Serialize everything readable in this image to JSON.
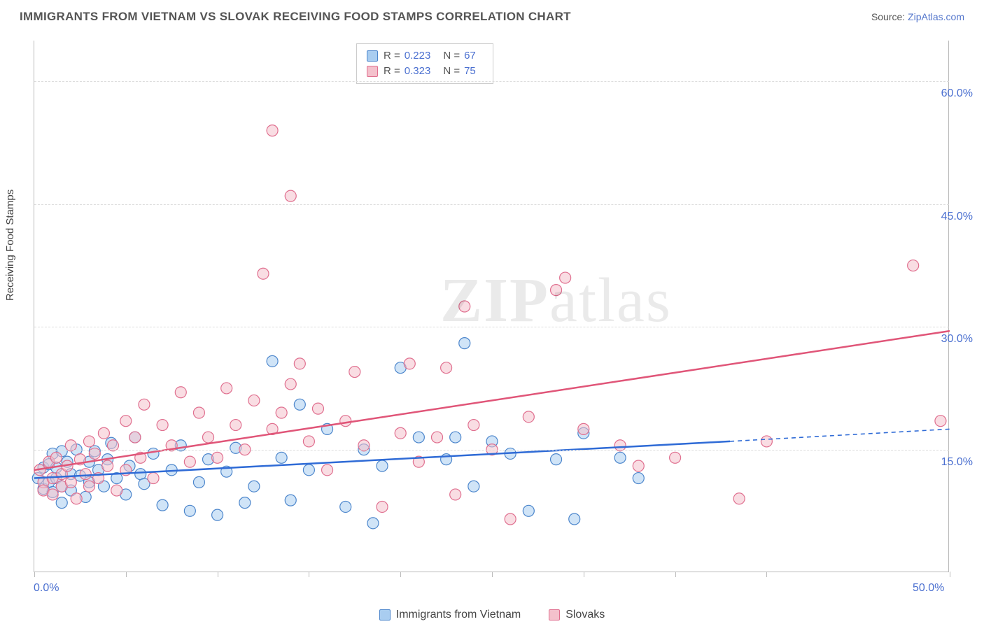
{
  "header": {
    "title": "IMMIGRANTS FROM VIETNAM VS SLOVAK RECEIVING FOOD STAMPS CORRELATION CHART",
    "source_label": "Source: ",
    "source_link": "ZipAtlas.com"
  },
  "chart": {
    "type": "scatter",
    "ylabel": "Receiving Food Stamps",
    "xlim": [
      0,
      50
    ],
    "ylim": [
      0,
      65
    ],
    "y_ticks": [
      15,
      30,
      45,
      60
    ],
    "y_tick_labels": [
      "15.0%",
      "30.0%",
      "45.0%",
      "60.0%"
    ],
    "x_ticks": [
      0,
      5,
      10,
      15,
      20,
      25,
      30,
      35,
      40,
      50
    ],
    "x_tick_labels_shown": {
      "0": "0.0%",
      "50": "50.0%"
    },
    "background_color": "#ffffff",
    "grid_color": "#dddddd",
    "axis_color": "#bbbbbb",
    "marker_radius": 8,
    "marker_opacity": 0.55,
    "series": [
      {
        "name": "Immigrants from Vietnam",
        "fill": "#a9cdf0",
        "stroke": "#4c86cc",
        "line_color": "#2f6bd6",
        "r": 0.223,
        "n": 67,
        "trend": {
          "x1": 0,
          "y1": 11.5,
          "x2": 38,
          "y2": 16.0,
          "dash_x2": 50,
          "dash_y2": 17.5
        },
        "points": [
          [
            0.2,
            11.5
          ],
          [
            0.5,
            12.8
          ],
          [
            0.5,
            10.2
          ],
          [
            0.8,
            11.0
          ],
          [
            0.8,
            13.2
          ],
          [
            1.0,
            9.8
          ],
          [
            1.0,
            14.5
          ],
          [
            1.2,
            11.5
          ],
          [
            1.2,
            12.8
          ],
          [
            1.5,
            10.5
          ],
          [
            1.5,
            14.8
          ],
          [
            1.5,
            8.5
          ],
          [
            1.8,
            13.5
          ],
          [
            2.0,
            12.0
          ],
          [
            2.0,
            10.0
          ],
          [
            2.3,
            15.0
          ],
          [
            2.5,
            11.8
          ],
          [
            2.8,
            9.2
          ],
          [
            3.0,
            13.5
          ],
          [
            3.0,
            11.0
          ],
          [
            3.3,
            14.8
          ],
          [
            3.5,
            12.5
          ],
          [
            3.8,
            10.5
          ],
          [
            4.0,
            13.8
          ],
          [
            4.2,
            15.8
          ],
          [
            4.5,
            11.5
          ],
          [
            5.0,
            9.5
          ],
          [
            5.2,
            13.0
          ],
          [
            5.5,
            16.5
          ],
          [
            5.8,
            12.0
          ],
          [
            6.0,
            10.8
          ],
          [
            6.5,
            14.5
          ],
          [
            7.0,
            8.2
          ],
          [
            7.5,
            12.5
          ],
          [
            8.0,
            15.5
          ],
          [
            8.5,
            7.5
          ],
          [
            9.0,
            11.0
          ],
          [
            9.5,
            13.8
          ],
          [
            10.0,
            7.0
          ],
          [
            10.5,
            12.3
          ],
          [
            11.0,
            15.2
          ],
          [
            11.5,
            8.5
          ],
          [
            12.0,
            10.5
          ],
          [
            13.0,
            25.8
          ],
          [
            13.5,
            14.0
          ],
          [
            14.0,
            8.8
          ],
          [
            14.5,
            20.5
          ],
          [
            15.0,
            12.5
          ],
          [
            16.0,
            17.5
          ],
          [
            17.0,
            8.0
          ],
          [
            18.0,
            15.0
          ],
          [
            18.5,
            6.0
          ],
          [
            19.0,
            13.0
          ],
          [
            20.0,
            25.0
          ],
          [
            21.0,
            16.5
          ],
          [
            22.5,
            13.8
          ],
          [
            23.0,
            16.5
          ],
          [
            23.5,
            28.0
          ],
          [
            24.0,
            10.5
          ],
          [
            25.0,
            16.0
          ],
          [
            26.0,
            14.5
          ],
          [
            27.0,
            7.5
          ],
          [
            28.5,
            13.8
          ],
          [
            29.5,
            6.5
          ],
          [
            30.0,
            17.0
          ],
          [
            32.0,
            14.0
          ],
          [
            33.0,
            11.5
          ]
        ]
      },
      {
        "name": "Slovaks",
        "fill": "#f4c1cc",
        "stroke": "#e06f8f",
        "line_color": "#e05578",
        "r": 0.323,
        "n": 75,
        "trend": {
          "x1": 0,
          "y1": 12.5,
          "x2": 50,
          "y2": 29.5
        },
        "points": [
          [
            0.3,
            12.5
          ],
          [
            0.5,
            11.0
          ],
          [
            0.5,
            10.0
          ],
          [
            0.8,
            13.5
          ],
          [
            1.0,
            11.5
          ],
          [
            1.0,
            9.5
          ],
          [
            1.2,
            14.0
          ],
          [
            1.5,
            12.0
          ],
          [
            1.5,
            10.5
          ],
          [
            1.8,
            13.0
          ],
          [
            2.0,
            11.0
          ],
          [
            2.0,
            15.5
          ],
          [
            2.3,
            9.0
          ],
          [
            2.5,
            13.8
          ],
          [
            2.8,
            12.0
          ],
          [
            3.0,
            16.0
          ],
          [
            3.0,
            10.5
          ],
          [
            3.3,
            14.5
          ],
          [
            3.5,
            11.5
          ],
          [
            3.8,
            17.0
          ],
          [
            4.0,
            13.0
          ],
          [
            4.3,
            15.5
          ],
          [
            4.5,
            10.0
          ],
          [
            5.0,
            18.5
          ],
          [
            5.0,
            12.5
          ],
          [
            5.5,
            16.5
          ],
          [
            5.8,
            14.0
          ],
          [
            6.0,
            20.5
          ],
          [
            6.5,
            11.5
          ],
          [
            7.0,
            18.0
          ],
          [
            7.5,
            15.5
          ],
          [
            8.0,
            22.0
          ],
          [
            8.5,
            13.5
          ],
          [
            9.0,
            19.5
          ],
          [
            9.5,
            16.5
          ],
          [
            10.0,
            14.0
          ],
          [
            10.5,
            22.5
          ],
          [
            11.0,
            18.0
          ],
          [
            11.5,
            15.0
          ],
          [
            12.0,
            21.0
          ],
          [
            12.5,
            36.5
          ],
          [
            13.0,
            17.5
          ],
          [
            13.0,
            54.0
          ],
          [
            13.5,
            19.5
          ],
          [
            14.0,
            23.0
          ],
          [
            14.0,
            46.0
          ],
          [
            14.5,
            25.5
          ],
          [
            15.0,
            16.0
          ],
          [
            15.5,
            20.0
          ],
          [
            16.0,
            12.5
          ],
          [
            17.0,
            18.5
          ],
          [
            17.5,
            24.5
          ],
          [
            18.0,
            15.5
          ],
          [
            19.0,
            8.0
          ],
          [
            20.0,
            17.0
          ],
          [
            20.5,
            25.5
          ],
          [
            21.0,
            13.5
          ],
          [
            22.0,
            16.5
          ],
          [
            22.5,
            25.0
          ],
          [
            23.0,
            9.5
          ],
          [
            23.5,
            32.5
          ],
          [
            24.0,
            18.0
          ],
          [
            25.0,
            15.0
          ],
          [
            26.0,
            6.5
          ],
          [
            27.0,
            19.0
          ],
          [
            28.5,
            34.5
          ],
          [
            29.0,
            36.0
          ],
          [
            30.0,
            17.5
          ],
          [
            32.0,
            15.5
          ],
          [
            33.0,
            13.0
          ],
          [
            35.0,
            14.0
          ],
          [
            38.5,
            9.0
          ],
          [
            40.0,
            16.0
          ],
          [
            48.0,
            37.5
          ],
          [
            49.5,
            18.5
          ]
        ]
      }
    ],
    "legend_top": {
      "rows": [
        {
          "swatch": 0,
          "r_label": "R =",
          "r_val": "0.223",
          "n_label": "N =",
          "n_val": "67"
        },
        {
          "swatch": 1,
          "r_label": "R =",
          "r_val": "0.323",
          "n_label": "N =",
          "n_val": "75"
        }
      ]
    },
    "watermark": "ZIPatlas"
  }
}
